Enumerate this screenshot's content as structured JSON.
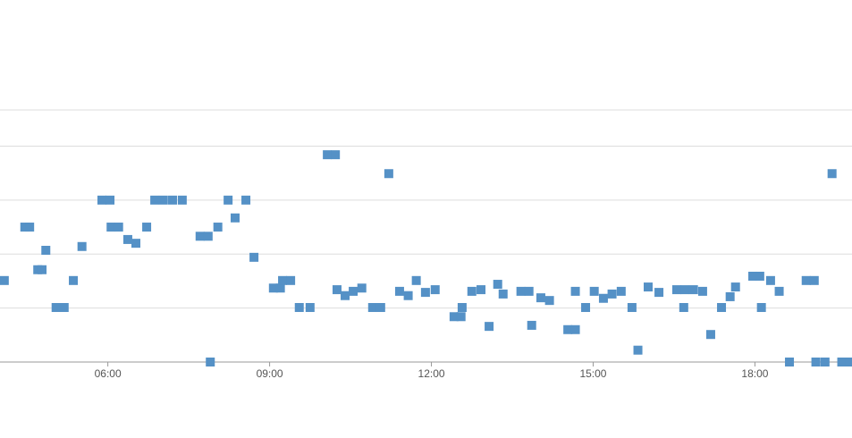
{
  "chart_data": {
    "type": "scatter",
    "color": "#5591c6",
    "xlim": [
      4,
      19.8
    ],
    "ylim": [
      0,
      4.67
    ],
    "xticks": [
      {
        "value": 6,
        "label": "06:00"
      },
      {
        "value": 9,
        "label": "09:00"
      },
      {
        "value": 12,
        "label": "12:00"
      },
      {
        "value": 15,
        "label": "15:00"
      },
      {
        "value": 18,
        "label": "18:00"
      }
    ],
    "yticks": [
      0,
      1,
      2,
      3,
      4
    ],
    "grid": true,
    "x": [
      4.08,
      4.46,
      4.55,
      4.7,
      4.78,
      4.85,
      5.04,
      5.19,
      5.36,
      5.52,
      5.89,
      6.04,
      6.06,
      6.2,
      6.37,
      6.52,
      6.72,
      6.87,
      7.03,
      7.2,
      7.38,
      7.71,
      7.86,
      7.9,
      8.04,
      8.23,
      8.36,
      8.56,
      8.71,
      9.07,
      9.2,
      9.24,
      9.39,
      9.55,
      9.75,
      10.07,
      10.22,
      10.25,
      10.4,
      10.55,
      10.71,
      10.91,
      11.06,
      11.21,
      11.41,
      11.57,
      11.72,
      11.89,
      12.07,
      12.42,
      12.55,
      12.57,
      12.75,
      12.92,
      13.07,
      13.23,
      13.33,
      13.66,
      13.81,
      13.86,
      14.03,
      14.19,
      14.53,
      14.67,
      14.67,
      14.86,
      15.02,
      15.19,
      15.35,
      15.52,
      15.72,
      15.83,
      16.02,
      16.22,
      16.55,
      16.7,
      16.68,
      16.86,
      17.03,
      17.18,
      17.38,
      17.54,
      17.64,
      17.96,
      18.09,
      18.12,
      18.29,
      18.45,
      18.64,
      18.95,
      19.1,
      19.13,
      19.3,
      19.43,
      19.61,
      19.76
    ],
    "values": [
      1.51,
      2.5,
      2.5,
      1.71,
      1.71,
      2.07,
      1.01,
      1.01,
      1.51,
      2.14,
      3.0,
      3.0,
      2.5,
      2.5,
      2.27,
      2.2,
      2.5,
      3.0,
      3.0,
      3.0,
      3.0,
      2.33,
      2.33,
      0,
      2.5,
      3.0,
      2.67,
      3.0,
      1.94,
      1.37,
      1.37,
      1.51,
      1.51,
      1.01,
      1.01,
      3.84,
      3.84,
      1.34,
      1.23,
      1.31,
      1.37,
      1.01,
      1.01,
      3.49,
      1.31,
      1.23,
      1.51,
      1.29,
      1.34,
      0.84,
      0.84,
      1.01,
      1.31,
      1.34,
      0.66,
      1.44,
      1.26,
      1.31,
      1.31,
      0.68,
      1.19,
      1.14,
      0.6,
      0.6,
      1.31,
      1.01,
      1.31,
      1.18,
      1.26,
      1.31,
      1.01,
      0.22,
      1.39,
      1.29,
      1.34,
      1.34,
      1.01,
      1.34,
      1.31,
      0.51,
      1.01,
      1.21,
      1.39,
      1.59,
      1.59,
      1.01,
      1.51,
      1.31,
      0,
      1.51,
      1.51,
      0,
      0,
      3.49,
      0,
      0
    ]
  }
}
